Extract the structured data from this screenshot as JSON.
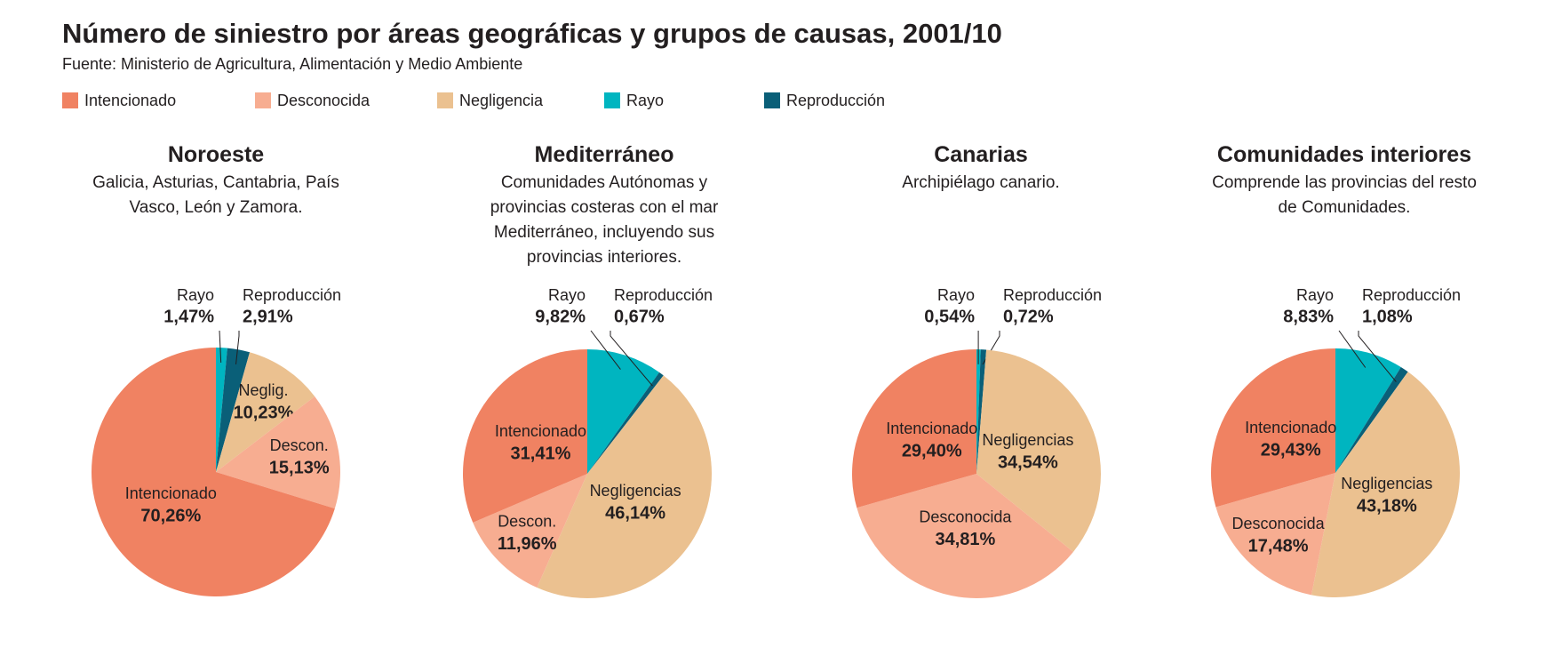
{
  "title": "Número de siniestro por áreas geográficas y grupos de causas, 2001/10",
  "source": "Fuente: Ministerio de Agricultura, Alimentación y Medio Ambiente",
  "legend": [
    {
      "name": "Intencionado",
      "color": "#f08262"
    },
    {
      "name": "Desconocida",
      "color": "#f7ad91"
    },
    {
      "name": "Negligencia",
      "color": "#ebc190"
    },
    {
      "name": "Rayo",
      "color": "#00b5c0"
    },
    {
      "name": "Reproducción",
      "color": "#0a5f78"
    }
  ],
  "chart_data": [
    {
      "type": "pie",
      "title": "Noroeste",
      "subtitle": "Galicia, Asturias, Cantabria, País Vasco, León y Zamora.",
      "categories": [
        "Rayo",
        "Reproducción",
        "Neglig.",
        "Descon.",
        "Intencionado"
      ],
      "values": [
        1.47,
        2.91,
        10.23,
        15.13,
        70.26
      ],
      "value_labels": [
        "1,47%",
        "2,91%",
        "10,23%",
        "15,13%",
        "70,26%"
      ],
      "colors": [
        "#00b5c0",
        "#0a5f78",
        "#ebc190",
        "#f7ad91",
        "#f08262"
      ]
    },
    {
      "type": "pie",
      "title": "Mediterráneo",
      "subtitle": "Comunidades Autónomas y provincias costeras con el mar Mediterráneo, incluyendo sus provincias interiores.",
      "categories": [
        "Rayo",
        "Reproducción",
        "Negligencias",
        "Descon.",
        "Intencionado"
      ],
      "values": [
        9.82,
        0.67,
        46.14,
        11.96,
        31.41
      ],
      "value_labels": [
        "9,82%",
        "0,67%",
        "46,14%",
        "11,96%",
        "31,41%"
      ],
      "colors": [
        "#00b5c0",
        "#0a5f78",
        "#ebc190",
        "#f7ad91",
        "#f08262"
      ]
    },
    {
      "type": "pie",
      "title": "Canarias",
      "subtitle": "Archipiélago canario.",
      "categories": [
        "Rayo",
        "Reproducción",
        "Negligencias",
        "Desconocida",
        "Intencionado"
      ],
      "values": [
        0.54,
        0.72,
        34.54,
        34.81,
        29.4
      ],
      "value_labels": [
        "0,54%",
        "0,72%",
        "34,54%",
        "34,81%",
        "29,40%"
      ],
      "colors": [
        "#00b5c0",
        "#0a5f78",
        "#ebc190",
        "#f7ad91",
        "#f08262"
      ]
    },
    {
      "type": "pie",
      "title": "Comunidades interiores",
      "subtitle": "Comprende las provincias del resto de Comunidades.",
      "categories": [
        "Rayo",
        "Reproducción",
        "Negligencias",
        "Desconocida",
        "Intencionado"
      ],
      "values": [
        8.83,
        1.08,
        43.18,
        17.48,
        29.43
      ],
      "value_labels": [
        "8,83%",
        "1,08%",
        "43,18%",
        "17,48%",
        "29,43%"
      ],
      "colors": [
        "#00b5c0",
        "#0a5f78",
        "#ebc190",
        "#f7ad91",
        "#f08262"
      ]
    }
  ]
}
